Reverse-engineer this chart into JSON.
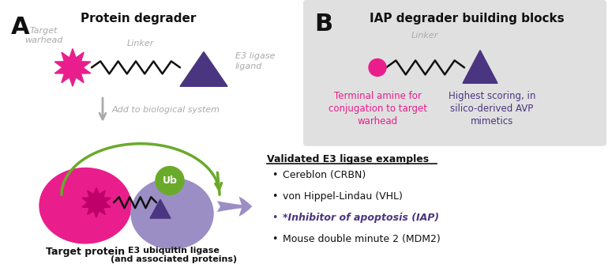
{
  "title_a": "Protein degrader",
  "title_b": "IAP degrader building blocks",
  "label_target_warhead": "Target\nwarhead",
  "label_linker_top": "Linker",
  "label_e3_ligase_ligand": "E3 ligase\nligand",
  "label_add_bio": "Add to biological system",
  "label_target_protein": "Target protein",
  "label_e3_ubiquitin": "E3 ubiquitin ligase\n(and associated proteins)",
  "label_ub": "Ub",
  "label_linker_b": "Linker",
  "label_terminal_amine": "Terminal amine for\nconjugation to target\nwarhead",
  "label_highest_scoring": "Highest scoring, in\nsilico-derived AVP\nmimetics",
  "validated_title": "Validated E3 ligase examples",
  "bullet1": "Cereblon (CRBN)",
  "bullet2": "von Hippel-Lindau (VHL)",
  "bullet3": "*Inhibitor of apoptosis (IAP)",
  "bullet4": "Mouse double minute 2 (MDM2)",
  "color_pink": "#e91e8c",
  "color_purple": "#4a3580",
  "color_purple_light": "#9b8ec4",
  "color_green": "#6aaa2a",
  "color_gray_arrow": "#aaaaaa",
  "color_gray_bg": "#e0e0e0",
  "color_text_gray": "#888888",
  "color_black": "#111111",
  "color_white": "#ffffff",
  "fig_bg": "#ffffff"
}
